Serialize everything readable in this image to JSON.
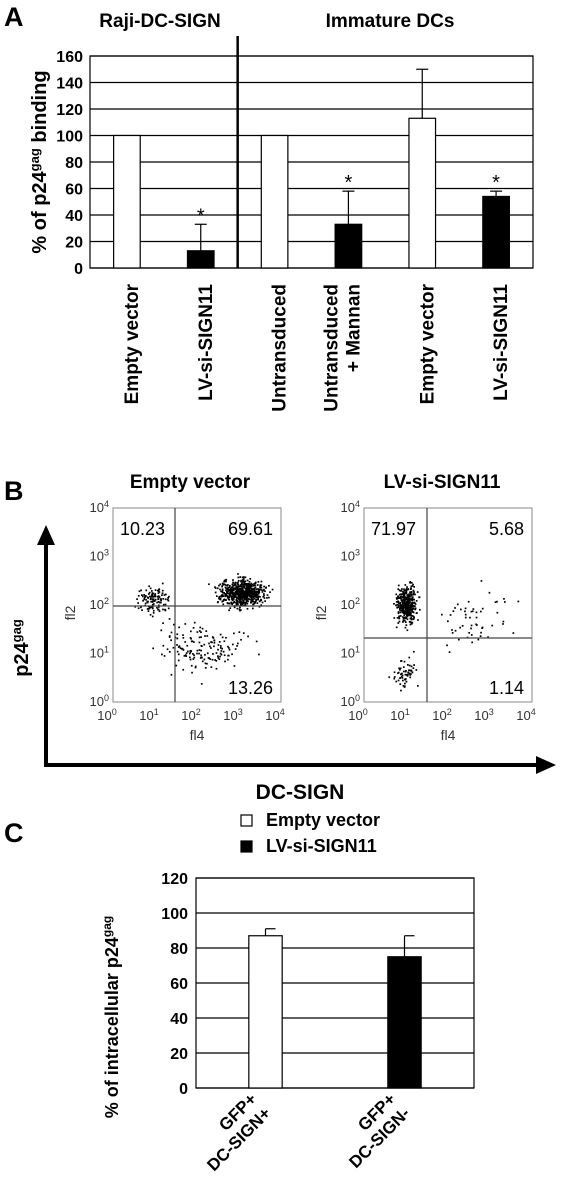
{
  "chart_data": [
    {
      "type": "bar",
      "panel_label": "A",
      "group_titles": [
        "Raji-DC-SIGN",
        "Immature DCs"
      ],
      "ylabel": "% of p24gag binding",
      "ylabel_main": "% of p24",
      "ylabel_sup": "gag",
      "ylabel_tail": " binding",
      "ylim": [
        0,
        160
      ],
      "yticks": [
        0,
        20,
        40,
        60,
        80,
        100,
        120,
        140,
        160
      ],
      "grid": true,
      "categories": [
        "Empty vector",
        "LV-si-SIGN11",
        "Untransduced",
        "Untransduced\n+ Mannan",
        "Empty vector",
        "LV-si-SIGN11"
      ],
      "category_lines": [
        [
          "Empty vector"
        ],
        [
          "LV-si-SIGN11"
        ],
        [
          "Untransduced"
        ],
        [
          "Untransduced",
          "+ Mannan"
        ],
        [
          "Empty vector"
        ],
        [
          "LV-si-SIGN11"
        ]
      ],
      "values": [
        100,
        13,
        100,
        33,
        113,
        54
      ],
      "errors": [
        0,
        20,
        0,
        25,
        37,
        4
      ],
      "fills": [
        "white",
        "black",
        "white",
        "black",
        "white",
        "black"
      ],
      "significance": [
        "",
        "*",
        "",
        "*",
        "",
        "*"
      ]
    },
    {
      "type": "scatter",
      "panel_label": "B",
      "ylabel": "p24gag",
      "ylabel_main": "p24",
      "ylabel_sup": "gag",
      "xlabel": "DC-SIGN",
      "subplots": [
        {
          "title": "Empty vector",
          "x_axis": "fl4",
          "y_axis": "fl2",
          "tick_labels": [
            "10",
            "10",
            "10",
            "10",
            "10"
          ],
          "tick_exponents": [
            "0",
            "1",
            "2",
            "3",
            "4"
          ],
          "quadrants": {
            "upper_left": "10.23",
            "upper_right": "69.61",
            "lower_right": "13.26"
          }
        },
        {
          "title": "LV-si-SIGN11",
          "x_axis": "fl4",
          "y_axis": "fl2",
          "tick_labels": [
            "10",
            "10",
            "10",
            "10",
            "10"
          ],
          "tick_exponents": [
            "0",
            "1",
            "2",
            "3",
            "4"
          ],
          "quadrants": {
            "upper_left": "71.97",
            "upper_right": "5.68",
            "lower_right": "1.14"
          }
        }
      ]
    },
    {
      "type": "bar",
      "panel_label": "C",
      "ylabel": "% of intracellular p24gag",
      "ylabel_main": "% of intracellular p24",
      "ylabel_sup": "gag",
      "ylim": [
        0,
        120
      ],
      "yticks": [
        0,
        20,
        40,
        60,
        80,
        100,
        120
      ],
      "grid": true,
      "legend": [
        {
          "label": "Empty vector",
          "fill": "white"
        },
        {
          "label": "LV-si-SIGN11",
          "fill": "black"
        }
      ],
      "categories": [
        "GFP+\nDC-SIGN+",
        "GFP+\nDC-SIGN-"
      ],
      "category_lines": [
        [
          "GFP+",
          "DC-SIGN+"
        ],
        [
          "GFP+",
          "DC-SIGN-"
        ]
      ],
      "values": [
        87,
        75
      ],
      "errors": [
        4,
        12
      ],
      "fills": [
        "white",
        "black"
      ]
    }
  ]
}
